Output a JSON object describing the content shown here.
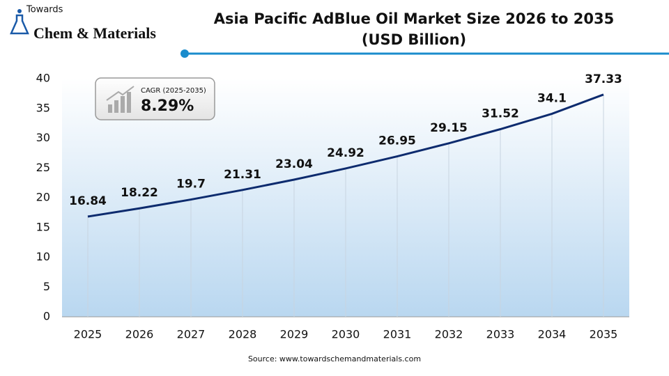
{
  "chart_data": {
    "type": "line",
    "title": "Asia Pacific AdBlue Oil Market Size 2026 to 2035",
    "subtitle": "(USD Billion)",
    "categories": [
      "2025",
      "2026",
      "2027",
      "2028",
      "2029",
      "2030",
      "2031",
      "2032",
      "2033",
      "2034",
      "2035"
    ],
    "values": [
      16.84,
      18.22,
      19.7,
      21.31,
      23.04,
      24.92,
      26.95,
      29.15,
      31.52,
      34.1,
      37.33
    ],
    "color": "#0d2b6e",
    "ylim": [
      0,
      40
    ],
    "yticks": [
      0,
      5,
      10,
      15,
      20,
      25,
      30,
      35,
      40
    ],
    "annotations": {
      "cagr_label": "CAGR (2025-2035)",
      "cagr_value": "8.29%"
    },
    "source": "Source: www.towardschemandmaterials.com"
  },
  "logo": {
    "top": "Towards",
    "main": "Chem & Materials"
  }
}
